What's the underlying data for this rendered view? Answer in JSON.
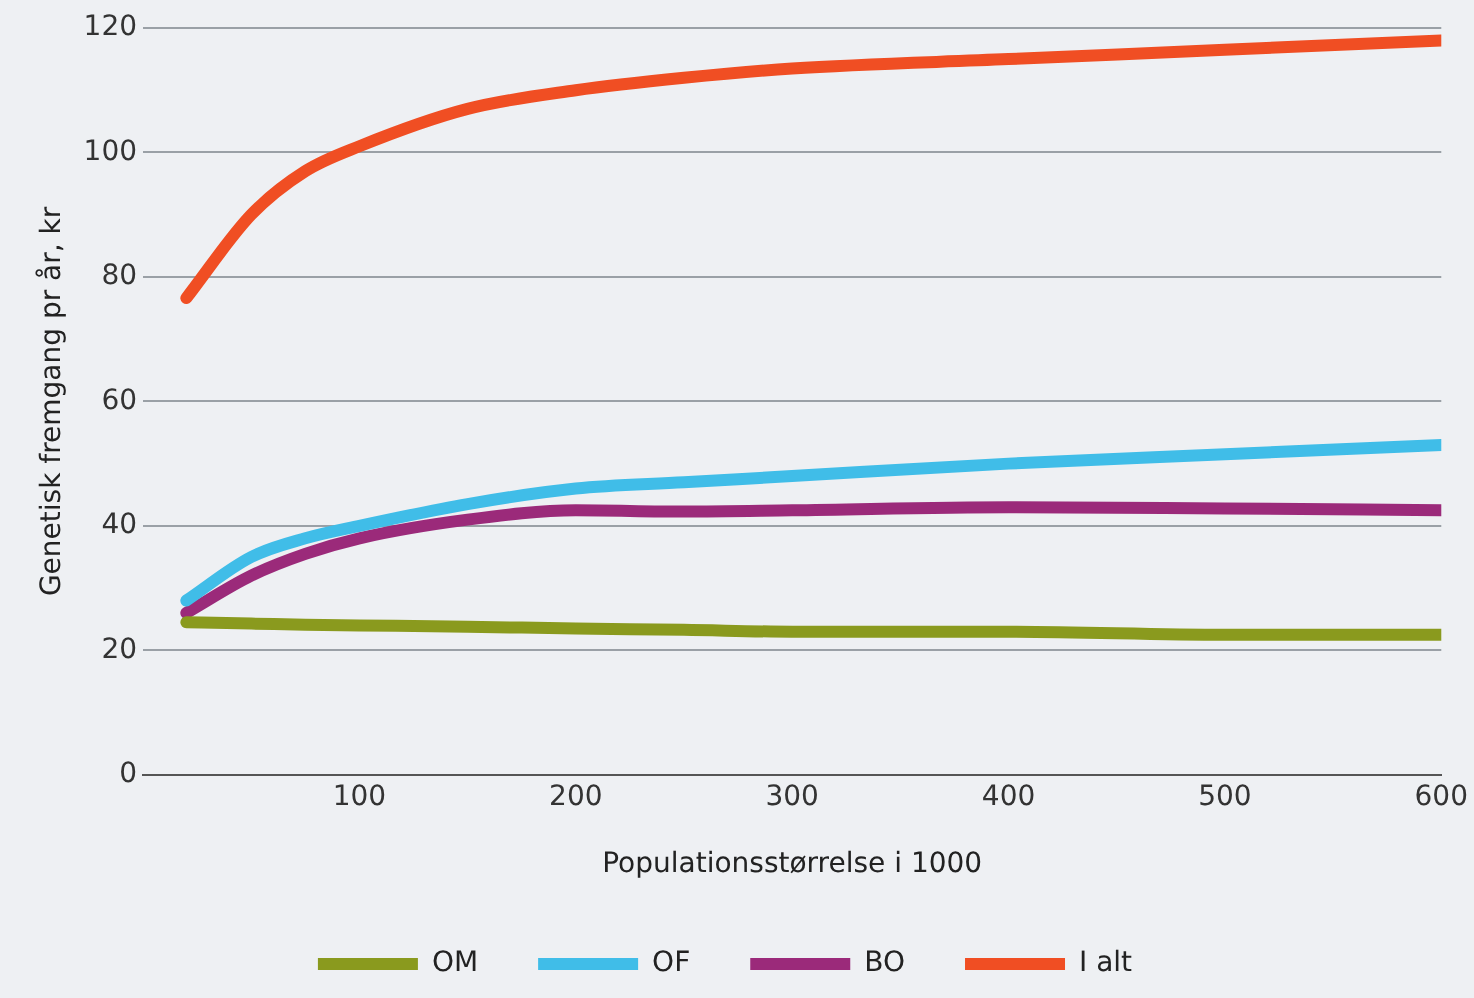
{
  "chart_data": {
    "type": "line",
    "xlabel": "Populationsstørrelse i 1000",
    "ylabel": "Genetisk fremgang pr år, kr",
    "x": [
      20,
      50,
      75,
      100,
      150,
      200,
      250,
      300,
      400,
      500,
      600
    ],
    "series": [
      {
        "name": "OM",
        "color": "#8a9a1e",
        "values": [
          24.5,
          24.3,
          24.1,
          24,
          23.8,
          23.5,
          23.3,
          23,
          23,
          22.5,
          22.5
        ]
      },
      {
        "name": "OF",
        "color": "#40bde8",
        "values": [
          28,
          35,
          38,
          40,
          43.5,
          46,
          47,
          48,
          50,
          51.5,
          53
        ]
      },
      {
        "name": "BO",
        "color": "#9b2a7a",
        "values": [
          26,
          32,
          35.5,
          38,
          41,
          42.5,
          42.3,
          42.5,
          43,
          42.8,
          42.5
        ]
      },
      {
        "name": "I alt",
        "color": "#f04e23",
        "values": [
          76.6,
          90,
          97,
          101,
          107,
          110,
          112,
          113.5,
          115,
          116.5,
          118
        ]
      }
    ],
    "xlim": [
      0,
      600
    ],
    "xticks": [
      100,
      200,
      300,
      400,
      500,
      600
    ],
    "ylim": [
      0,
      120
    ],
    "yticks": [
      0,
      20,
      40,
      60,
      80,
      100,
      120
    ],
    "grid": "y",
    "legend": "bottom",
    "marker": "none",
    "line_style": "solid"
  }
}
